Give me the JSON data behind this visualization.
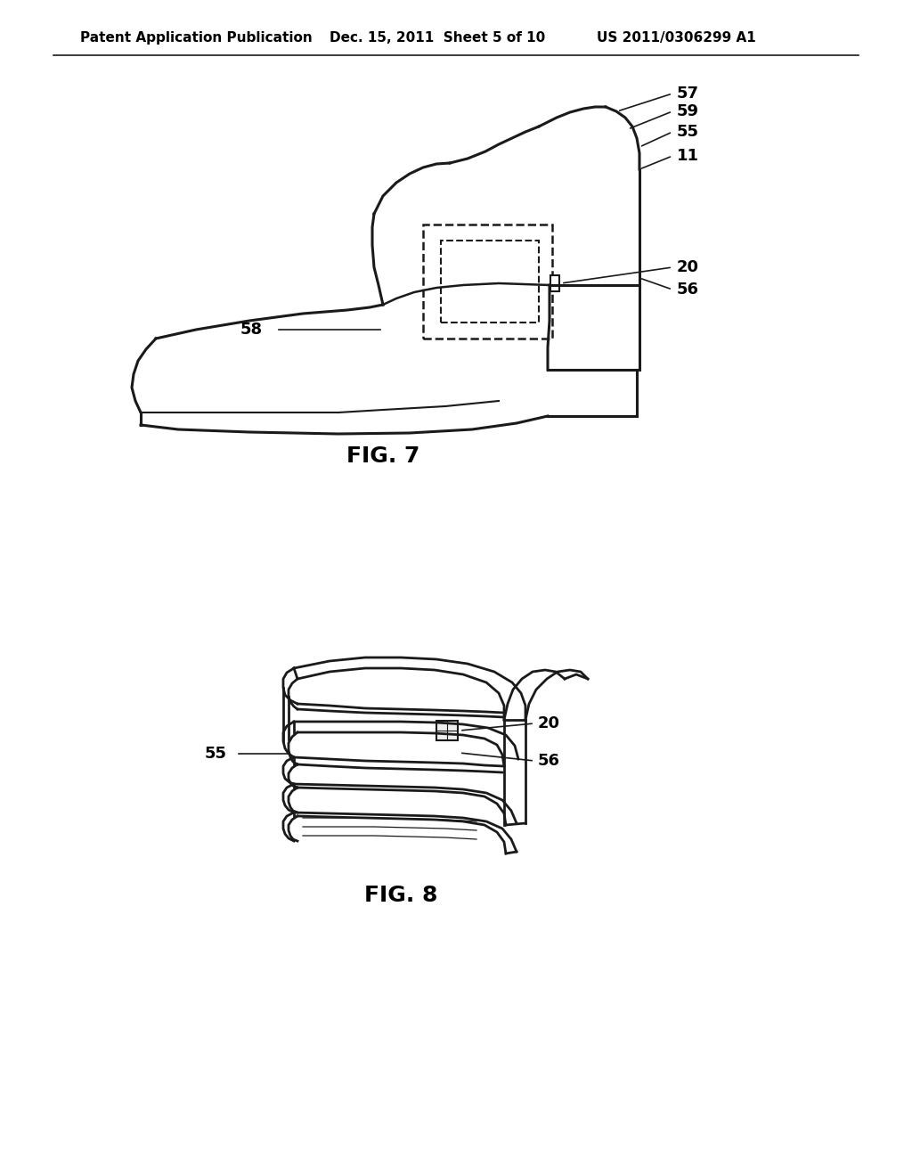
{
  "background_color": "#ffffff",
  "header_text": "Patent Application Publication",
  "header_date": "Dec. 15, 2011  Sheet 5 of 10",
  "header_patent": "US 2011/0306299 A1",
  "fig7_label": "FIG. 7",
  "fig8_label": "FIG. 8",
  "line_color": "#1a1a1a",
  "text_color": "#000000"
}
